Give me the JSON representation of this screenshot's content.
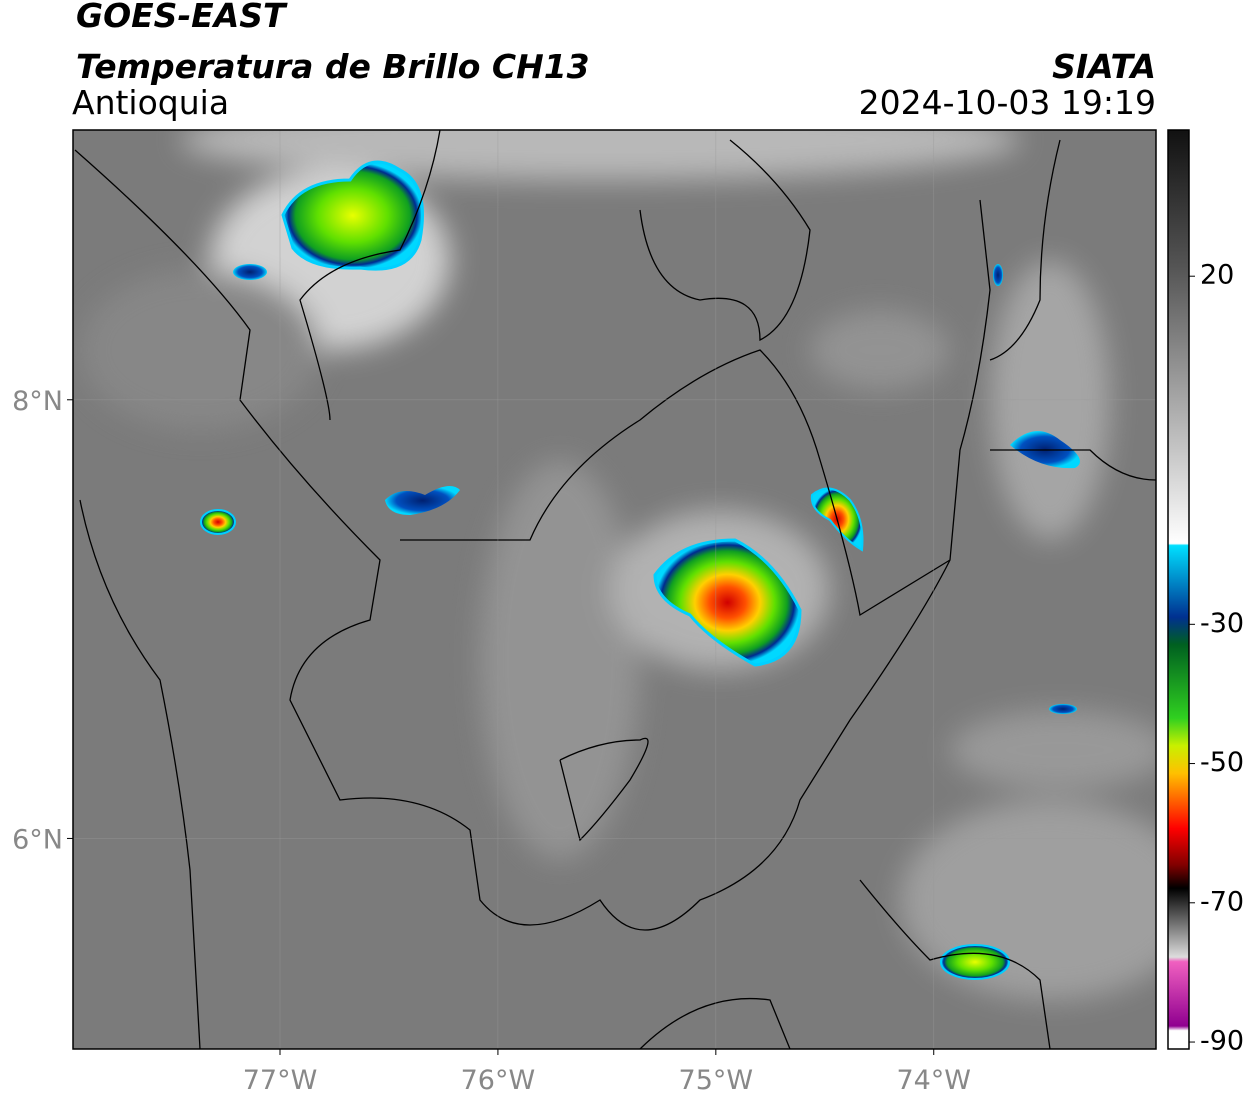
{
  "header": {
    "title": "GOES-EAST",
    "subtitle": "Temperatura de Brillo CH13",
    "region": "Antioquia",
    "source": "SIATA",
    "datetime": "2024-10-03 19:19"
  },
  "map": {
    "xlim": [
      -77.95,
      -72.98
    ],
    "ylim": [
      5.04,
      9.23
    ],
    "xticks": [
      {
        "value": -77,
        "label": "77°W"
      },
      {
        "value": -76,
        "label": "76°W"
      },
      {
        "value": -75,
        "label": "75°W"
      },
      {
        "value": -74,
        "label": "74°W"
      }
    ],
    "yticks": [
      {
        "value": 8,
        "label": "8°N"
      },
      {
        "value": 6,
        "label": "6°N"
      }
    ],
    "grid": true
  },
  "colorbar": {
    "range": [
      41,
      -91
    ],
    "ticks": [
      20,
      -30,
      -50,
      -70,
      -90
    ]
  }
}
